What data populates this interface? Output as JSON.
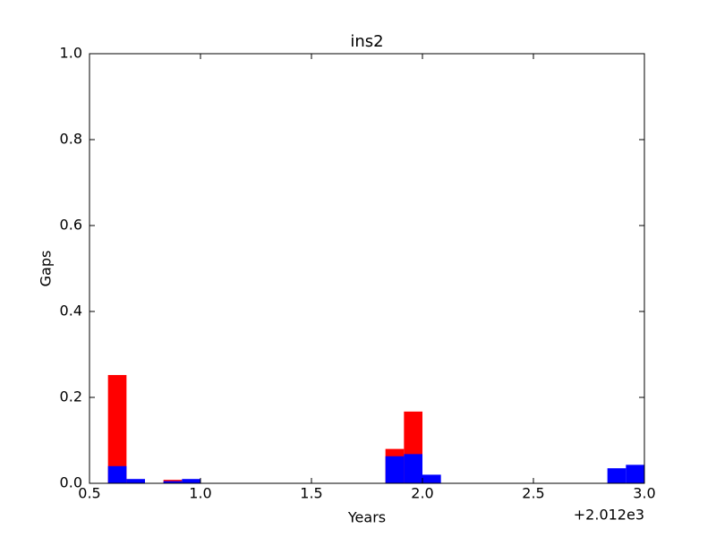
{
  "chart_data": {
    "type": "histogram",
    "title": "ins2",
    "x_label": "Years",
    "y_label": "Gaps",
    "x_offset_text": "+2.012e3",
    "bins": [
      2012.5833,
      2012.6667,
      2012.75,
      2012.8333,
      2012.9167,
      2013.0,
      2013.0833,
      2013.1667,
      2013.25,
      2013.3333,
      2013.4167,
      2013.5,
      2013.5833,
      2013.6667,
      2013.75,
      2013.8333,
      2013.9167,
      2014.0,
      2014.0833,
      2014.1667,
      2014.25,
      2014.3333,
      2014.4167,
      2014.5,
      2014.5833,
      2014.6667,
      2014.75,
      2014.8333,
      2014.9167,
      2015.0
    ],
    "series": [
      {
        "color": "#ff0000",
        "values": [
          0.252,
          0,
          0,
          0.008,
          0,
          0,
          0,
          0,
          0,
          0,
          0,
          0,
          0,
          0,
          0,
          0.08,
          0.167,
          0,
          0,
          0,
          0,
          0,
          0,
          0,
          0,
          0,
          0,
          0,
          0
        ]
      },
      {
        "color": "#0000ff",
        "values": [
          0.04,
          0.01,
          0,
          0.005,
          0.01,
          0,
          0,
          0,
          0,
          0,
          0,
          0,
          0,
          0,
          0,
          0.063,
          0.068,
          0.02,
          0,
          0,
          0,
          0,
          0,
          0,
          0,
          0,
          0,
          0.035,
          0.043
        ]
      }
    ],
    "xlim": [
      2012.5,
      2015.0
    ],
    "xticks": [
      {
        "value": 2012.5,
        "label": "0.5"
      },
      {
        "value": 2013.0,
        "label": "1.0"
      },
      {
        "value": 2013.5,
        "label": "1.5"
      },
      {
        "value": 2014.0,
        "label": "2.0"
      },
      {
        "value": 2014.5,
        "label": "2.5"
      },
      {
        "value": 2015.0,
        "label": "3.0"
      }
    ],
    "ylim": [
      0,
      1
    ],
    "yticks": [
      {
        "value": 0,
        "label": "0.0"
      },
      {
        "value": 0.2,
        "label": "0.2"
      },
      {
        "value": 0.4,
        "label": "0.4"
      },
      {
        "value": 0.6,
        "label": "0.6"
      },
      {
        "value": 0.8,
        "label": "0.8"
      },
      {
        "value": 1,
        "label": "1.0"
      }
    ]
  }
}
